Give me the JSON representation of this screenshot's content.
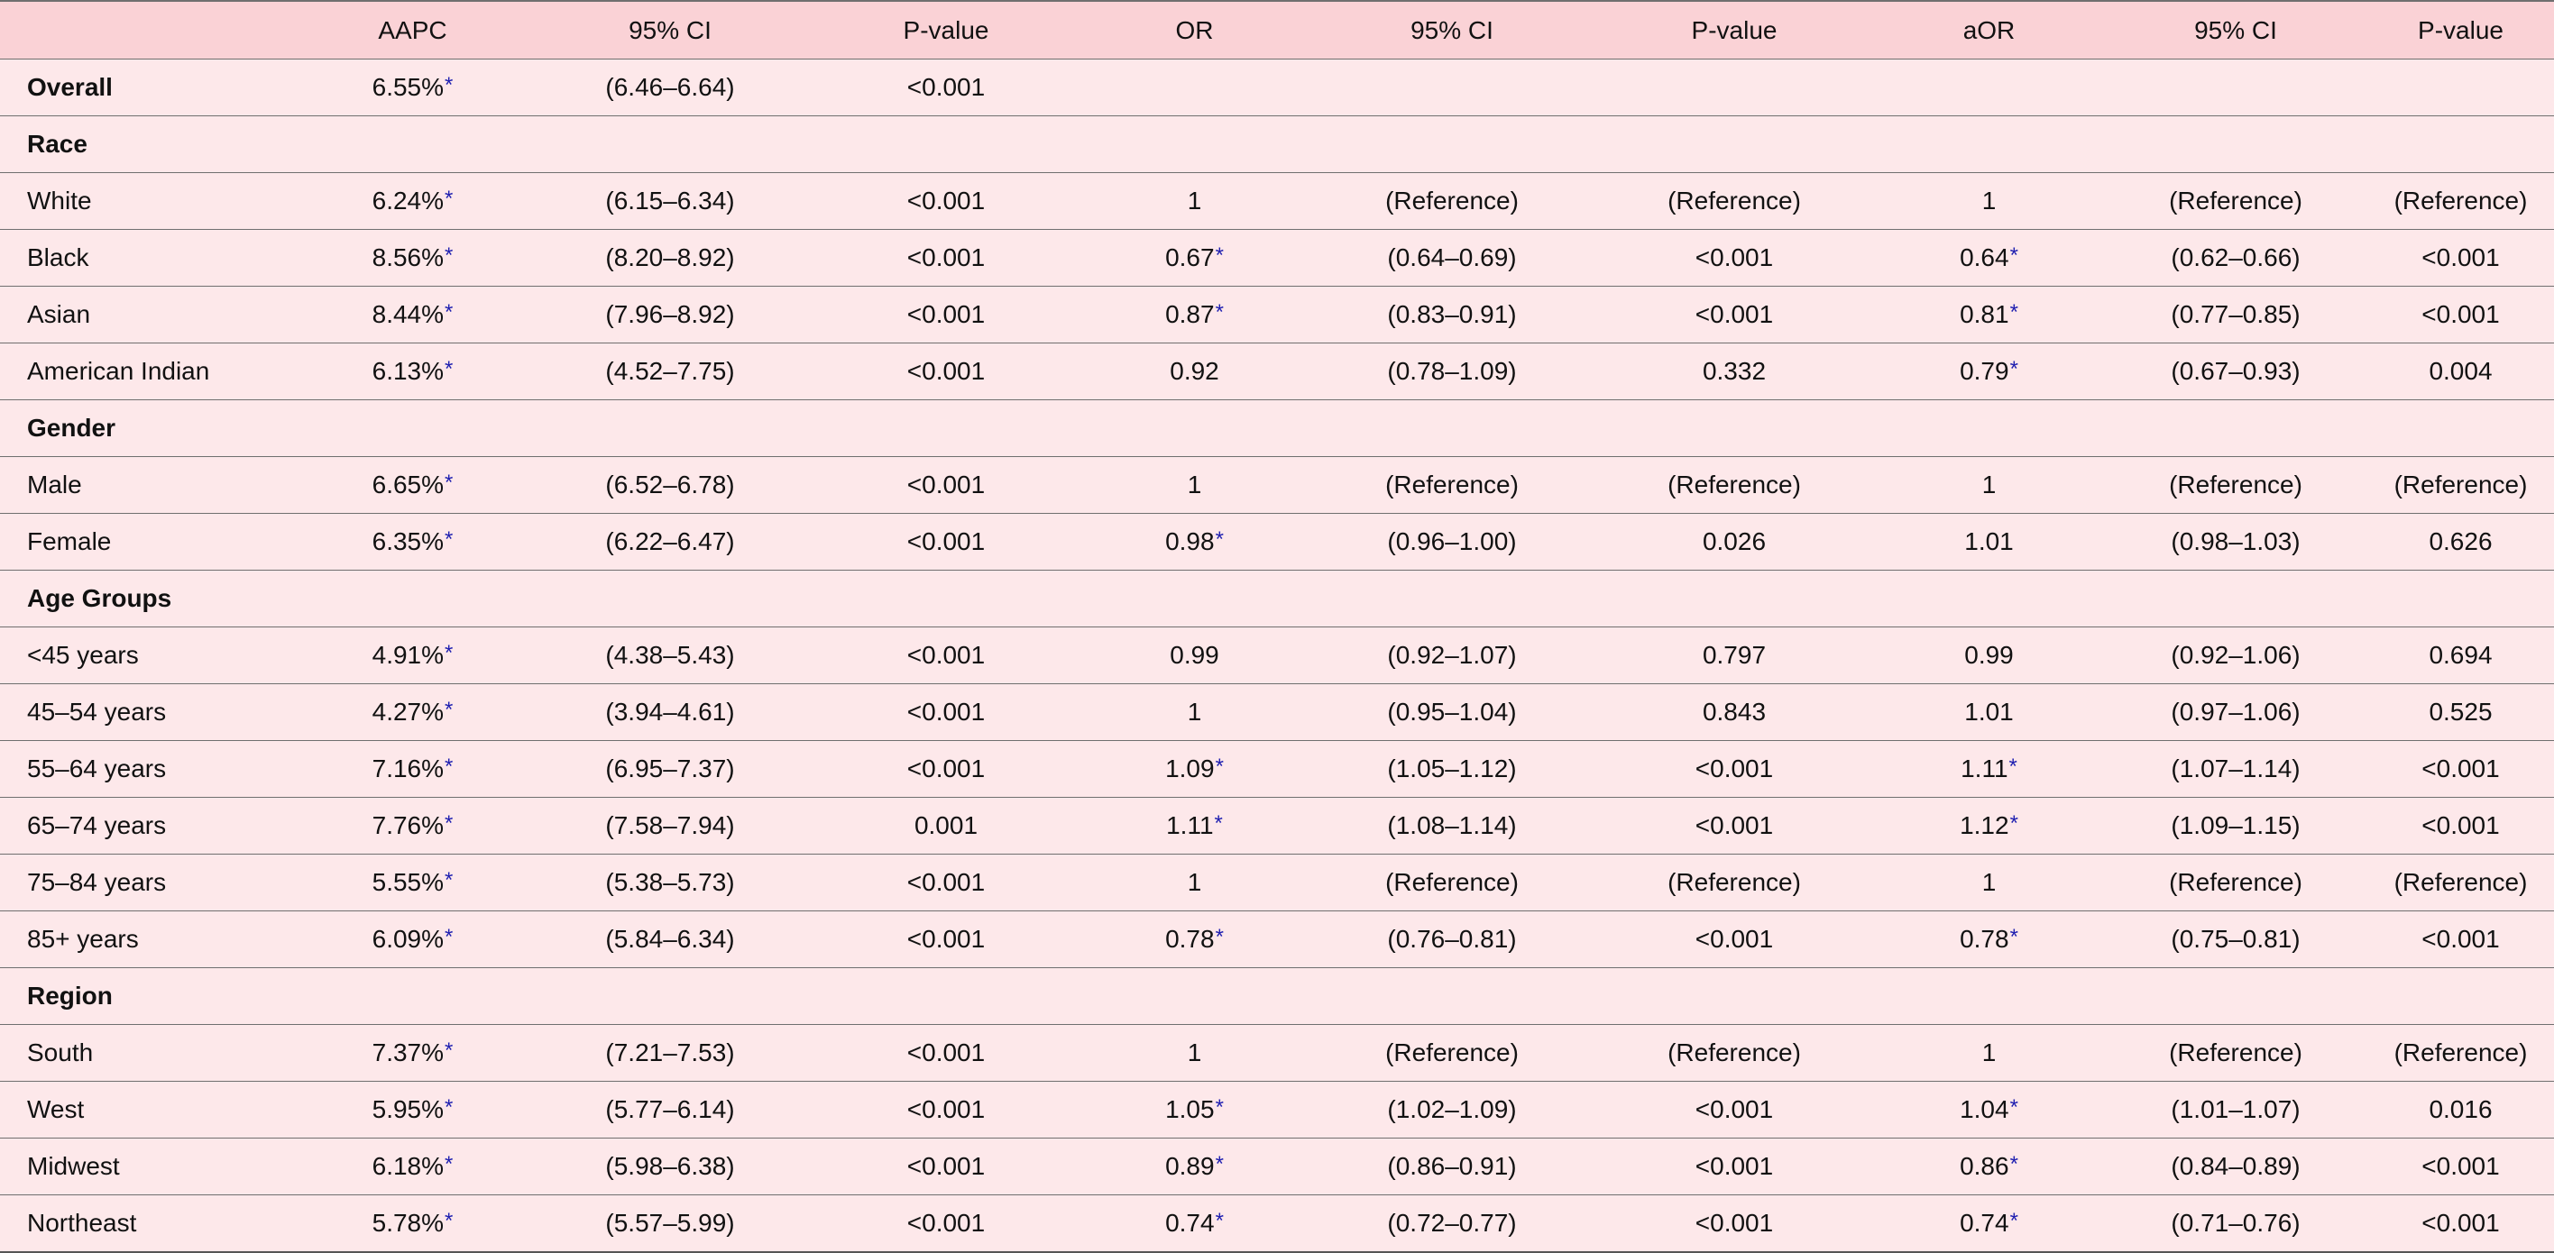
{
  "columns": [
    "",
    "AAPC",
    "95% CI",
    "P-value",
    "OR",
    "95% CI",
    "P-value",
    "aOR",
    "95% CI",
    "P-value"
  ],
  "rows": [
    {
      "type": "overall",
      "label": "Overall",
      "aapc": "6.55%",
      "aapc_sig": true,
      "ci1": "(6.46–6.64)",
      "p1": "<0.001"
    },
    {
      "type": "section",
      "label": "Race"
    },
    {
      "type": "data",
      "label": "White",
      "aapc": "6.24%",
      "aapc_sig": true,
      "ci1": "(6.15–6.34)",
      "p1": "<0.001",
      "or": "1",
      "or_sig": false,
      "ci2": "(Reference)",
      "p2": "(Reference)",
      "aor": "1",
      "aor_sig": false,
      "ci3": "(Reference)",
      "p3": "(Reference)"
    },
    {
      "type": "data",
      "label": "Black",
      "aapc": "8.56%",
      "aapc_sig": true,
      "ci1": "(8.20–8.92)",
      "p1": "<0.001",
      "or": "0.67",
      "or_sig": true,
      "ci2": "(0.64–0.69)",
      "p2": "<0.001",
      "aor": "0.64",
      "aor_sig": true,
      "ci3": "(0.62–0.66)",
      "p3": "<0.001"
    },
    {
      "type": "data",
      "label": "Asian",
      "aapc": "8.44%",
      "aapc_sig": true,
      "ci1": "(7.96–8.92)",
      "p1": "<0.001",
      "or": "0.87",
      "or_sig": true,
      "ci2": "(0.83–0.91)",
      "p2": "<0.001",
      "aor": "0.81",
      "aor_sig": true,
      "ci3": "(0.77–0.85)",
      "p3": "<0.001"
    },
    {
      "type": "data",
      "label": "American Indian",
      "aapc": "6.13%",
      "aapc_sig": true,
      "ci1": "(4.52–7.75)",
      "p1": "<0.001",
      "or": "0.92",
      "or_sig": false,
      "ci2": "(0.78–1.09)",
      "p2": "0.332",
      "aor": "0.79",
      "aor_sig": true,
      "ci3": "(0.67–0.93)",
      "p3": "0.004"
    },
    {
      "type": "section",
      "label": "Gender"
    },
    {
      "type": "data",
      "label": "Male",
      "aapc": "6.65%",
      "aapc_sig": true,
      "ci1": "(6.52–6.78)",
      "p1": "<0.001",
      "or": "1",
      "or_sig": false,
      "ci2": "(Reference)",
      "p2": "(Reference)",
      "aor": "1",
      "aor_sig": false,
      "ci3": "(Reference)",
      "p3": "(Reference)"
    },
    {
      "type": "data",
      "label": "Female",
      "aapc": "6.35%",
      "aapc_sig": true,
      "ci1": "(6.22–6.47)",
      "p1": "<0.001",
      "or": "0.98",
      "or_sig": true,
      "ci2": "(0.96–1.00)",
      "p2": "0.026",
      "aor": "1.01",
      "aor_sig": false,
      "ci3": "(0.98–1.03)",
      "p3": "0.626"
    },
    {
      "type": "section",
      "label": "Age Groups"
    },
    {
      "type": "data",
      "label": "<45 years",
      "aapc": "4.91%",
      "aapc_sig": true,
      "ci1": "(4.38–5.43)",
      "p1": "<0.001",
      "or": "0.99",
      "or_sig": false,
      "ci2": "(0.92–1.07)",
      "p2": "0.797",
      "aor": "0.99",
      "aor_sig": false,
      "ci3": "(0.92–1.06)",
      "p3": "0.694"
    },
    {
      "type": "data",
      "label": "45–54 years",
      "aapc": "4.27%",
      "aapc_sig": true,
      "ci1": "(3.94–4.61)",
      "p1": "<0.001",
      "or": "1",
      "or_sig": false,
      "ci2": "(0.95–1.04)",
      "p2": "0.843",
      "aor": "1.01",
      "aor_sig": false,
      "ci3": "(0.97–1.06)",
      "p3": "0.525"
    },
    {
      "type": "data",
      "label": "55–64 years",
      "aapc": "7.16%",
      "aapc_sig": true,
      "ci1": "(6.95–7.37)",
      "p1": "<0.001",
      "or": "1.09",
      "or_sig": true,
      "ci2": "(1.05–1.12)",
      "p2": "<0.001",
      "aor": "1.11",
      "aor_sig": true,
      "ci3": "(1.07–1.14)",
      "p3": "<0.001"
    },
    {
      "type": "data",
      "label": "65–74 years",
      "aapc": "7.76%",
      "aapc_sig": true,
      "ci1": "(7.58–7.94)",
      "p1": "0.001",
      "or": "1.11",
      "or_sig": true,
      "ci2": "(1.08–1.14)",
      "p2": "<0.001",
      "aor": "1.12",
      "aor_sig": true,
      "ci3": "(1.09–1.15)",
      "p3": "<0.001"
    },
    {
      "type": "data",
      "label": "75–84 years",
      "aapc": "5.55%",
      "aapc_sig": true,
      "ci1": "(5.38–5.73)",
      "p1": "<0.001",
      "or": "1",
      "or_sig": false,
      "ci2": "(Reference)",
      "p2": "(Reference)",
      "aor": "1",
      "aor_sig": false,
      "ci3": "(Reference)",
      "p3": "(Reference)"
    },
    {
      "type": "data",
      "label": "85+ years",
      "aapc": "6.09%",
      "aapc_sig": true,
      "ci1": "(5.84–6.34)",
      "p1": "<0.001",
      "or": "0.78",
      "or_sig": true,
      "ci2": "(0.76–0.81)",
      "p2": "<0.001",
      "aor": "0.78",
      "aor_sig": true,
      "ci3": "(0.75–0.81)",
      "p3": "<0.001"
    },
    {
      "type": "section",
      "label": "Region"
    },
    {
      "type": "data",
      "label": "South",
      "aapc": "7.37%",
      "aapc_sig": true,
      "ci1": "(7.21–7.53)",
      "p1": "<0.001",
      "or": "1",
      "or_sig": false,
      "ci2": "(Reference)",
      "p2": "(Reference)",
      "aor": "1",
      "aor_sig": false,
      "ci3": "(Reference)",
      "p3": "(Reference)"
    },
    {
      "type": "data",
      "label": "West",
      "aapc": "5.95%",
      "aapc_sig": true,
      "ci1": "(5.77–6.14)",
      "p1": "<0.001",
      "or": "1.05",
      "or_sig": true,
      "ci2": "(1.02–1.09)",
      "p2": "<0.001",
      "aor": "1.04",
      "aor_sig": true,
      "ci3": "(1.01–1.07)",
      "p3": "0.016"
    },
    {
      "type": "data",
      "label": "Midwest",
      "aapc": "6.18%",
      "aapc_sig": true,
      "ci1": "(5.98–6.38)",
      "p1": "<0.001",
      "or": "0.89",
      "or_sig": true,
      "ci2": "(0.86–0.91)",
      "p2": "<0.001",
      "aor": "0.86",
      "aor_sig": true,
      "ci3": "(0.84–0.89)",
      "p3": "<0.001"
    },
    {
      "type": "data",
      "label": "Northeast",
      "aapc": "5.78%",
      "aapc_sig": true,
      "ci1": "(5.57–5.99)",
      "p1": "<0.001",
      "or": "0.74",
      "or_sig": true,
      "ci2": "(0.72–0.77)",
      "p2": "<0.001",
      "aor": "0.74",
      "aor_sig": true,
      "ci3": "(0.71–0.76)",
      "p3": "<0.001"
    }
  ],
  "significance_marker": "*",
  "colors": {
    "header_background": "#fad2d6",
    "row_background": "#fde8ea",
    "rule": "#6f6f6f",
    "significance_marker": "#1f1fb0"
  }
}
